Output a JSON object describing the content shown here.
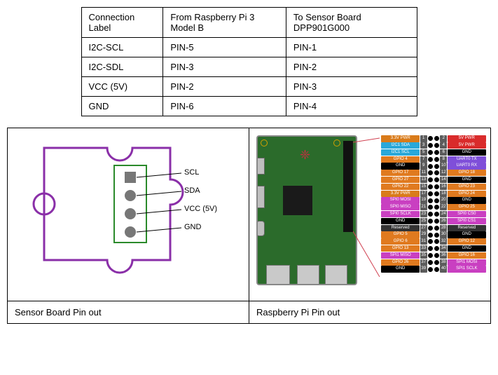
{
  "connection_table": {
    "columns": [
      "Connection Label",
      "From Raspberry Pi 3 Model B",
      "To Sensor Board DPP901G000"
    ],
    "rows": [
      [
        "I2C-SCL",
        "PIN-5",
        "PIN-1"
      ],
      [
        "I2C-SDL",
        "PIN-3",
        "PIN-2"
      ],
      [
        "VCC (5V)",
        "PIN-2",
        "PIN-3"
      ],
      [
        "GND",
        "PIN-6",
        "PIN-4"
      ]
    ]
  },
  "captions": {
    "sensor": "Sensor Board Pin out",
    "pi": "Raspberry Pi Pin out"
  },
  "sensor_diagram": {
    "outline_color": "#8a2fa8",
    "connector_color": "#2b8a2b",
    "pad_color": "#777777",
    "labels": [
      "SCL",
      "SDA",
      "VCC (5V)",
      "GND"
    ]
  },
  "pi_pinout": {
    "colors": {
      "power3v3": "#d97b1a",
      "power5v": "#d92b2b",
      "gnd": "#000000",
      "i2c": "#2aa8d9",
      "spi": "#c93fc1",
      "uart": "#7f4fd9",
      "gpio": "#e07a1f",
      "reserved": "#333333"
    },
    "rows": [
      {
        "l": "3.3V PWR",
        "lc": "power3v3",
        "ln": 1,
        "rn": 2,
        "r": "5V PWR",
        "rc": "power5v"
      },
      {
        "l": "I2C1 SDA",
        "lc": "i2c",
        "ln": 3,
        "rn": 4,
        "r": "5V PWR",
        "rc": "power5v"
      },
      {
        "l": "I2C1 SCL",
        "lc": "i2c",
        "ln": 5,
        "rn": 6,
        "r": "GND",
        "rc": "gnd"
      },
      {
        "l": "GPIO 4",
        "lc": "gpio",
        "ln": 7,
        "rn": 8,
        "r": "UART0 TX",
        "rc": "uart"
      },
      {
        "l": "GND",
        "lc": "gnd",
        "ln": 9,
        "rn": 10,
        "r": "UART0 RX",
        "rc": "uart"
      },
      {
        "l": "GPIO 17",
        "lc": "gpio",
        "ln": 11,
        "rn": 12,
        "r": "GPIO 18",
        "rc": "gpio"
      },
      {
        "l": "GPIO 27",
        "lc": "gpio",
        "ln": 13,
        "rn": 14,
        "r": "GND",
        "rc": "gnd"
      },
      {
        "l": "GPIO 22",
        "lc": "gpio",
        "ln": 15,
        "rn": 16,
        "r": "GPIO 23",
        "rc": "gpio"
      },
      {
        "l": "3.3V PWR",
        "lc": "power3v3",
        "ln": 17,
        "rn": 18,
        "r": "GPIO 24",
        "rc": "gpio"
      },
      {
        "l": "SPI0 MOSI",
        "lc": "spi",
        "ln": 19,
        "rn": 20,
        "r": "GND",
        "rc": "gnd"
      },
      {
        "l": "SPI0 MISO",
        "lc": "spi",
        "ln": 21,
        "rn": 22,
        "r": "GPIO 25",
        "rc": "gpio"
      },
      {
        "l": "SPI0 SCLK",
        "lc": "spi",
        "ln": 23,
        "rn": 24,
        "r": "SPI0 CS0",
        "rc": "spi"
      },
      {
        "l": "GND",
        "lc": "gnd",
        "ln": 25,
        "rn": 26,
        "r": "SPI0 CS1",
        "rc": "spi"
      },
      {
        "l": "Reserved",
        "lc": "reserved",
        "ln": 27,
        "rn": 28,
        "r": "Reserved",
        "rc": "reserved"
      },
      {
        "l": "GPIO 5",
        "lc": "gpio",
        "ln": 29,
        "rn": 30,
        "r": "GND",
        "rc": "gnd"
      },
      {
        "l": "GPIO 6",
        "lc": "gpio",
        "ln": 31,
        "rn": 32,
        "r": "GPIO 12",
        "rc": "gpio"
      },
      {
        "l": "GPIO 13",
        "lc": "gpio",
        "ln": 33,
        "rn": 34,
        "r": "GND",
        "rc": "gnd"
      },
      {
        "l": "SPI1 MISO",
        "lc": "spi",
        "ln": 35,
        "rn": 36,
        "r": "GPIO 16",
        "rc": "gpio"
      },
      {
        "l": "GPIO 26",
        "lc": "gpio",
        "ln": 37,
        "rn": 38,
        "r": "SPI1 MOSI",
        "rc": "spi"
      },
      {
        "l": "GND",
        "lc": "gnd",
        "ln": 39,
        "rn": 40,
        "r": "SPI1 SCLK",
        "rc": "spi"
      }
    ]
  }
}
